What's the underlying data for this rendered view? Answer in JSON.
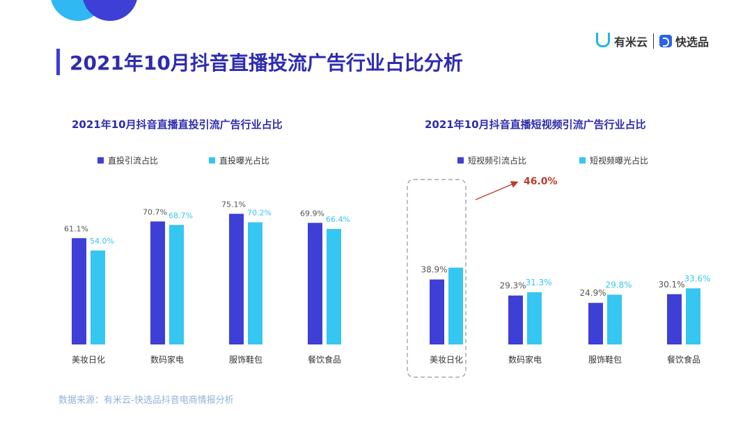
{
  "title": "2021年10月抖音直播投流广告行业占比分析",
  "logo": {
    "brand1": "有米云",
    "brand2": "快选品"
  },
  "source": "数据来源：有米云-快选品抖音电商情报分析",
  "colors": {
    "dark": "#3e3fd6",
    "light": "#36c6f2",
    "title": "#2e2bb0",
    "arrow": "#c0392b"
  },
  "annotation": {
    "text": "46.0%"
  },
  "chart_data": [
    {
      "type": "bar",
      "title": "2021年10月抖音直播直投引流广告行业占比",
      "categories": [
        "美妆日化",
        "数码家电",
        "服饰鞋包",
        "餐饮食品"
      ],
      "series": [
        {
          "name": "直投引流占比",
          "values": [
            61.1,
            70.7,
            75.1,
            69.9
          ],
          "labels": [
            "61.1%",
            "70.7%",
            "75.1%",
            "69.9%"
          ]
        },
        {
          "name": "直投曝光占比",
          "values": [
            54.0,
            68.7,
            70.2,
            66.4
          ],
          "labels": [
            "54.0%",
            "68.7%",
            "70.2%",
            "66.4%"
          ]
        }
      ],
      "ylim": [
        0,
        100
      ]
    },
    {
      "type": "bar",
      "title": "2021年10月抖音直播短视频引流广告行业占比",
      "categories": [
        "美妆日化",
        "数码家电",
        "服饰鞋包",
        "餐饮食品"
      ],
      "series": [
        {
          "name": "短视频引流占比",
          "values": [
            38.9,
            29.3,
            24.9,
            30.1
          ],
          "labels": [
            "38.9%",
            "29.3%",
            "24.9%",
            "30.1%"
          ]
        },
        {
          "name": "短视频曝光占比",
          "values": [
            46.0,
            31.3,
            29.8,
            33.6
          ],
          "labels": [
            "",
            "31.3%",
            "29.8%",
            "33.6%"
          ]
        }
      ],
      "highlight": "美妆日化",
      "ylim": [
        0,
        100
      ]
    }
  ]
}
